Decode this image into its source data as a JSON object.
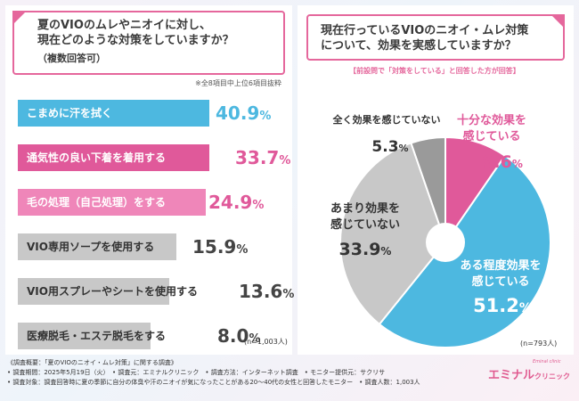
{
  "left": {
    "question_line1": "夏のVIOのムレやニオイに対し、",
    "question_line2": "現在どのような対策をしていますか？",
    "question_sub": "（複数回答可）",
    "note": "※全8項目中上位6項目抜粋",
    "sample": "(n=1,003人)"
  },
  "right": {
    "question_line1": "現在行っているVIOのニオイ・ムレ対策",
    "question_line2": "について、効果を実感していますか？",
    "note": "【前設問で「対策をしている」と回答した方が回答】",
    "sample": "(n=793人)"
  },
  "chart_data": [
    {
      "type": "bar",
      "orientation": "horizontal",
      "categories": [
        "こまめに汗を拭く",
        "通気性の良い下着を着用する",
        "毛の処理（自己処理）をする",
        "VIO専用ソープを使用する",
        "VIO用スプレーやシートを使用する",
        "医療脱毛・エステ脱毛をする"
      ],
      "values": [
        40.9,
        33.7,
        24.9,
        15.9,
        13.6,
        8.0
      ],
      "value_labels": [
        "40.9",
        "33.7",
        "24.9",
        "15.9",
        "13.6",
        "8.0"
      ],
      "unit": "%",
      "xlim": [
        0,
        45
      ],
      "colors": [
        "#4db8e0",
        "#e0599a",
        "#ef86b9",
        "#c8c8c8",
        "#c8c8c8",
        "#c8c8c8"
      ]
    },
    {
      "type": "pie",
      "labels": [
        [
          "十分な効果を",
          "感じている"
        ],
        [
          "ある程度効果を",
          "感じている"
        ],
        [
          "あまり効果を",
          "感じていない"
        ],
        [
          "全く効果を感じていない"
        ]
      ],
      "values": [
        9.6,
        51.2,
        33.9,
        5.3
      ],
      "value_labels": [
        "9.6",
        "51.2",
        "33.9",
        "5.3"
      ],
      "unit": "%",
      "colors": [
        "#e0599a",
        "#4db8e0",
        "#c8c8c8",
        "#9a9a9a"
      ]
    }
  ],
  "footer": {
    "line1": "《調査概要：「夏のVIOのニオイ・ムレ対策」に関する調査》",
    "line2": "• 調査期間：2025年5月19日（火）　• 調査元：エミナルクリニック　• 調査方法：インターネット調査　• モニター提供元：サクリサ",
    "line3": "• 調査対象：調査回答時に夏の季節に自分の体臭や汗のニオイが気になったことがある20〜40代の女性と回答したモニター　• 調査人数：1,003人"
  },
  "logo": {
    "brand": "Eminal clinic",
    "main": "エミナル",
    "sub": "クリニック"
  }
}
